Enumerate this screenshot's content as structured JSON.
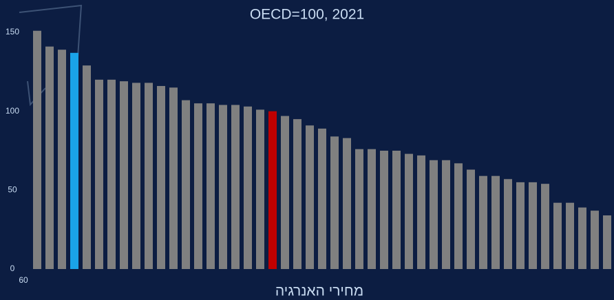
{
  "chart_data": {
    "type": "bar",
    "title": "OECD=100, 2021",
    "x_label": "מחירי האנרגיה",
    "annotation": "60",
    "values": [
      151,
      141,
      139,
      137,
      129,
      120,
      120,
      119,
      118,
      118,
      116,
      115,
      107,
      105,
      105,
      104,
      104,
      103,
      101,
      100,
      97,
      95,
      91,
      89,
      84,
      83,
      76,
      76,
      75,
      75,
      73,
      72,
      69,
      69,
      67,
      63,
      59,
      59,
      57,
      55,
      55,
      54,
      42,
      42,
      39,
      37,
      34
    ],
    "colors": [
      "#808080",
      "#808080",
      "#808080",
      "#1aa3e8",
      "#808080",
      "#808080",
      "#808080",
      "#808080",
      "#808080",
      "#808080",
      "#808080",
      "#808080",
      "#808080",
      "#808080",
      "#808080",
      "#808080",
      "#808080",
      "#808080",
      "#808080",
      "#c00000",
      "#808080",
      "#808080",
      "#808080",
      "#808080",
      "#808080",
      "#808080",
      "#808080",
      "#808080",
      "#808080",
      "#808080",
      "#808080",
      "#808080",
      "#808080",
      "#808080",
      "#808080",
      "#808080",
      "#808080",
      "#808080",
      "#808080",
      "#808080",
      "#808080",
      "#808080",
      "#808080",
      "#808080",
      "#808080",
      "#808080",
      "#808080"
    ],
    "ylim": [
      0,
      150
    ],
    "yticks": [
      0,
      50,
      100,
      150
    ],
    "grid": false
  }
}
